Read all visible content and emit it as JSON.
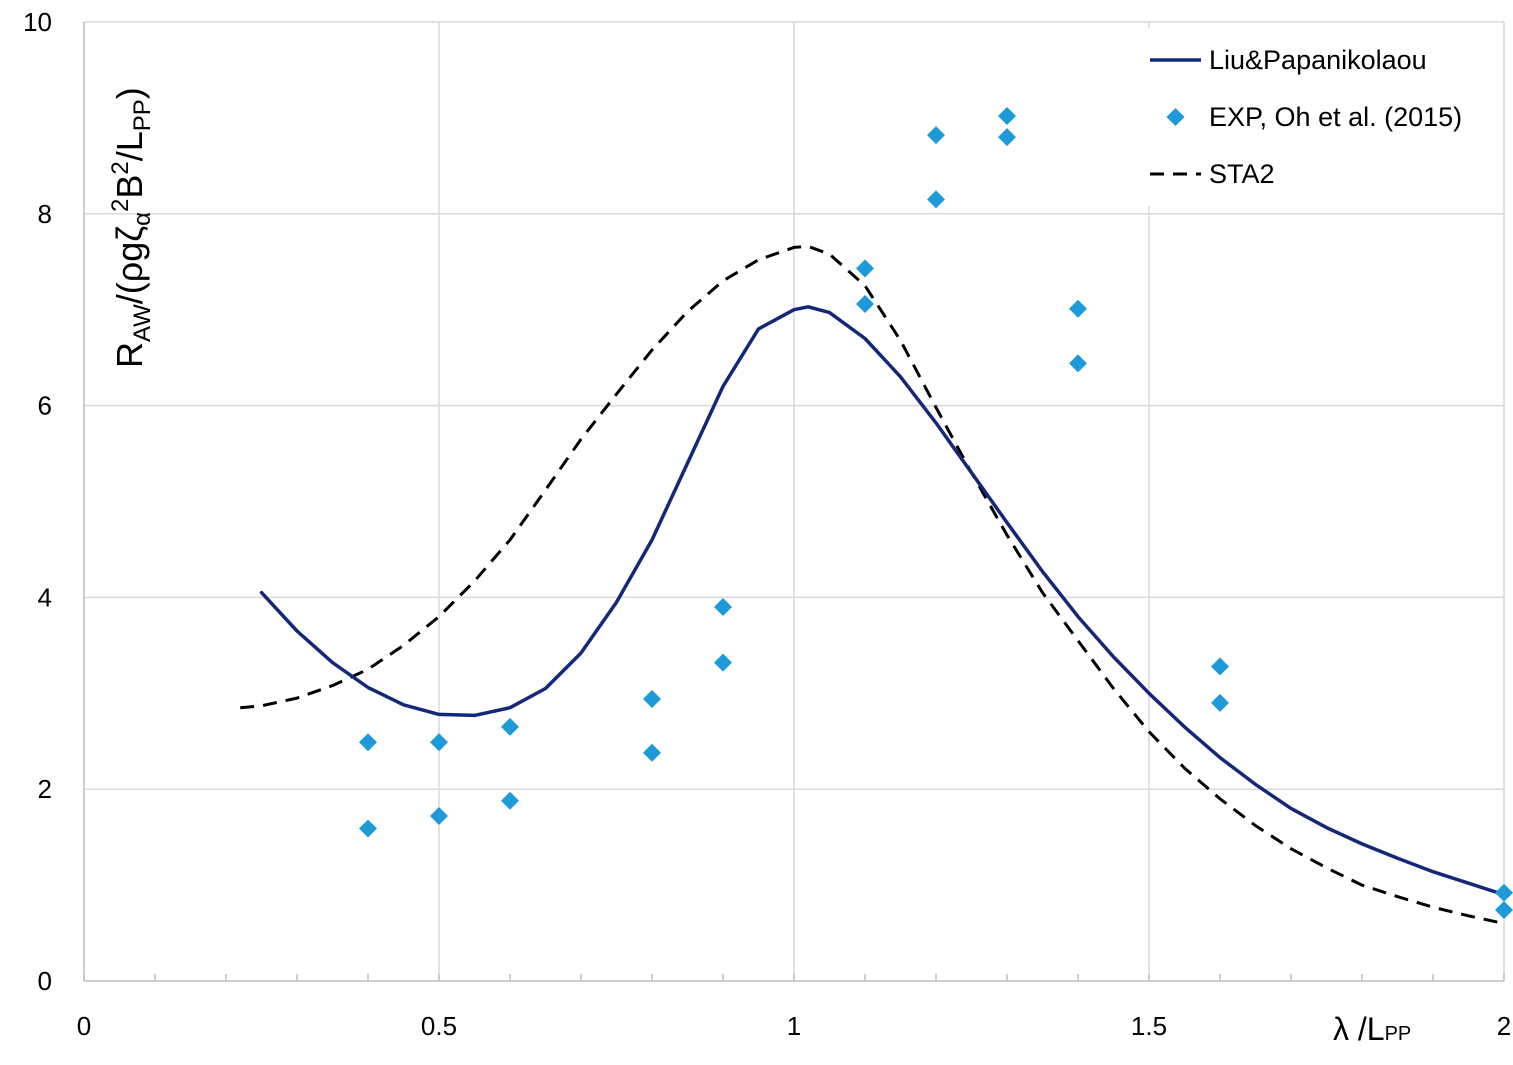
{
  "chart_data": {
    "type": "line",
    "xlabel": {
      "main": "λ /L",
      "sub": "PP"
    },
    "ylabel": {
      "parts": [
        {
          "t": "R",
          "s": "base"
        },
        {
          "t": "AW",
          "s": "sub"
        },
        {
          "t": "/(ρgζ",
          "s": "base"
        },
        {
          "t": "α",
          "s": "sub"
        },
        {
          "t": "2",
          "s": "sup"
        },
        {
          "t": "B",
          "s": "base"
        },
        {
          "t": "2",
          "s": "sup"
        },
        {
          "t": "/L",
          "s": "base"
        },
        {
          "t": "PP",
          "s": "sub"
        },
        {
          "t": ")",
          "s": "base"
        }
      ]
    },
    "xlim": [
      0,
      2
    ],
    "ylim": [
      0,
      10
    ],
    "x_ticks": [
      "0",
      "0.5",
      "1",
      "1.5",
      "2"
    ],
    "x_tick_values": [
      0,
      0.5,
      1,
      1.5,
      2
    ],
    "y_ticks": [
      "0",
      "2",
      "4",
      "6",
      "8",
      "10"
    ],
    "y_tick_values": [
      0,
      2,
      4,
      6,
      8,
      10
    ],
    "x_minor_step": 0.1,
    "grid": true,
    "legend_position": "top-right",
    "series": [
      {
        "name": "Liu&Papanikolaou",
        "style": "solid",
        "color": "#14287a",
        "x": [
          0.25,
          0.3,
          0.35,
          0.4,
          0.45,
          0.5,
          0.55,
          0.6,
          0.65,
          0.7,
          0.75,
          0.8,
          0.85,
          0.9,
          0.95,
          1.0,
          1.02,
          1.05,
          1.1,
          1.15,
          1.2,
          1.25,
          1.3,
          1.35,
          1.4,
          1.45,
          1.5,
          1.55,
          1.6,
          1.65,
          1.7,
          1.75,
          1.8,
          1.85,
          1.9,
          1.95,
          2.0
        ],
        "y": [
          4.05,
          3.65,
          3.32,
          3.06,
          2.88,
          2.78,
          2.77,
          2.85,
          3.05,
          3.42,
          3.95,
          4.6,
          5.4,
          6.2,
          6.8,
          7.0,
          7.03,
          6.97,
          6.7,
          6.3,
          5.82,
          5.3,
          4.78,
          4.27,
          3.8,
          3.38,
          3.0,
          2.65,
          2.33,
          2.05,
          1.8,
          1.6,
          1.43,
          1.28,
          1.14,
          1.02,
          0.9
        ]
      },
      {
        "name": "EXP, Oh et al. (2015)",
        "style": "markers",
        "color": "#1f9ad9",
        "x": [
          0.4,
          0.4,
          0.5,
          0.5,
          0.6,
          0.6,
          0.8,
          0.8,
          0.9,
          0.9,
          1.1,
          1.1,
          1.2,
          1.2,
          1.3,
          1.3,
          1.4,
          1.4,
          1.6,
          1.6,
          2.0,
          2.0
        ],
        "y": [
          2.49,
          1.59,
          2.49,
          1.72,
          2.65,
          1.88,
          2.94,
          2.38,
          3.9,
          3.32,
          7.43,
          7.06,
          8.82,
          8.15,
          9.02,
          8.8,
          7.01,
          6.44,
          3.28,
          2.9,
          0.92,
          0.74
        ]
      },
      {
        "name": "STA2",
        "style": "dashed",
        "color": "#000000",
        "x": [
          0.22,
          0.25,
          0.3,
          0.35,
          0.4,
          0.45,
          0.5,
          0.55,
          0.6,
          0.65,
          0.7,
          0.75,
          0.8,
          0.85,
          0.9,
          0.95,
          1.0,
          1.02,
          1.05,
          1.1,
          1.15,
          1.2,
          1.25,
          1.3,
          1.35,
          1.4,
          1.45,
          1.5,
          1.55,
          1.6,
          1.65,
          1.7,
          1.75,
          1.8,
          1.85,
          1.9,
          1.95,
          2.0
        ],
        "y": [
          2.85,
          2.87,
          2.95,
          3.08,
          3.25,
          3.5,
          3.8,
          4.17,
          4.6,
          5.12,
          5.65,
          6.12,
          6.58,
          6.98,
          7.3,
          7.52,
          7.65,
          7.66,
          7.58,
          7.25,
          6.68,
          5.98,
          5.3,
          4.65,
          4.05,
          3.55,
          3.05,
          2.6,
          2.22,
          1.9,
          1.62,
          1.38,
          1.18,
          1.0,
          0.88,
          0.77,
          0.68,
          0.6
        ]
      }
    ]
  }
}
